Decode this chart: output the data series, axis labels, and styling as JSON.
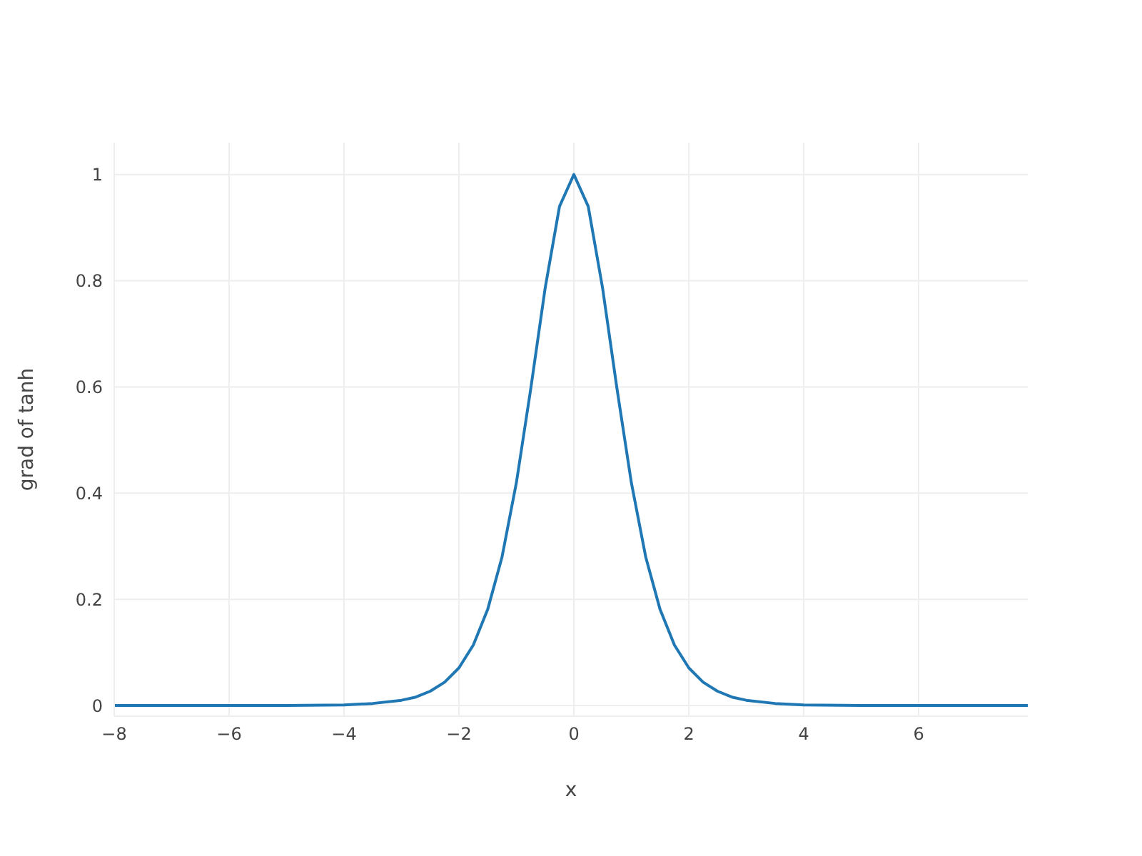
{
  "chart_data": {
    "type": "line",
    "xlabel": "x",
    "ylabel": "grad of tanh",
    "x": [
      -8,
      -6,
      -5,
      -4,
      -3.5,
      -3,
      -2.75,
      -2.5,
      -2.25,
      -2,
      -1.75,
      -1.5,
      -1.25,
      -1,
      -0.75,
      -0.5,
      -0.25,
      0,
      0.25,
      0.5,
      0.75,
      1,
      1.25,
      1.5,
      1.75,
      2,
      2.25,
      2.5,
      2.75,
      3,
      3.5,
      4,
      5,
      6,
      7.9
    ],
    "series": [
      {
        "color": "#1f77b4",
        "values": [
          0,
          0,
          0,
          0.001,
          0.004,
          0.01,
          0.016,
          0.027,
          0.044,
          0.071,
          0.114,
          0.181,
          0.28,
          0.42,
          0.597,
          0.786,
          0.94,
          1,
          0.94,
          0.786,
          0.597,
          0.42,
          0.28,
          0.181,
          0.114,
          0.071,
          0.044,
          0.027,
          0.016,
          0.01,
          0.004,
          0.001,
          0,
          0,
          0
        ]
      }
    ],
    "xlim": [
      -8,
      7.9
    ],
    "xticks": [
      -8,
      -6,
      -4,
      -2,
      0,
      2,
      4,
      6
    ],
    "ylim": [
      -0.02,
      1.06
    ],
    "yticks": [
      0,
      0.2,
      0.4,
      0.6,
      0.8,
      1
    ],
    "grid": true,
    "legend": false,
    "marker": "none",
    "line_style": "solid"
  }
}
